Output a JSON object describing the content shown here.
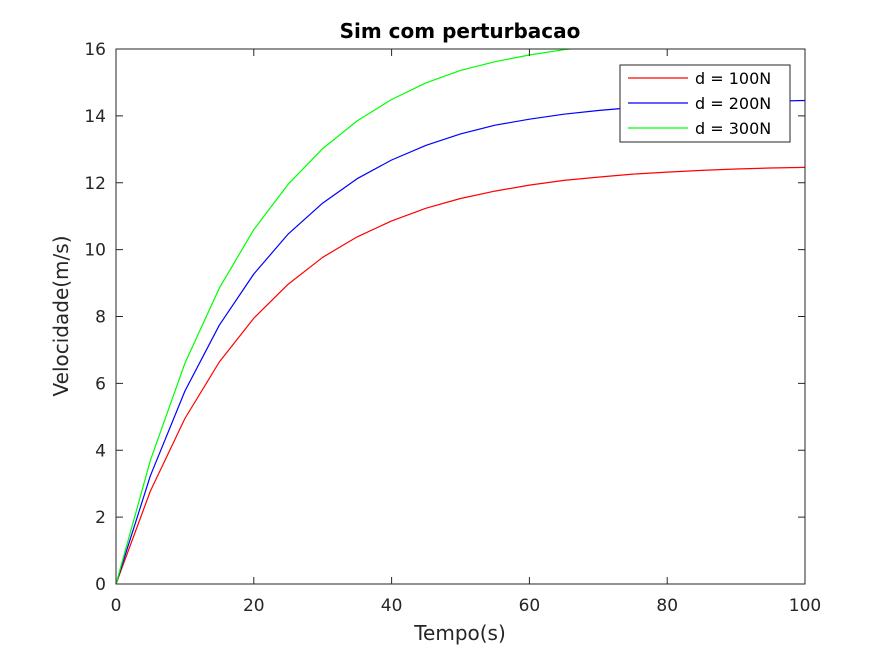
{
  "chart_data": {
    "type": "line",
    "title": "Sim com perturbacao",
    "xlabel": "Tempo(s)",
    "ylabel": "Velocidade(m/s)",
    "xlim": [
      0,
      100
    ],
    "ylim": [
      0,
      16
    ],
    "xticks": [
      0,
      20,
      40,
      60,
      80,
      100
    ],
    "yticks": [
      0,
      2,
      4,
      6,
      8,
      10,
      12,
      14,
      16
    ],
    "xtick_labels": [
      "0",
      "20",
      "40",
      "60",
      "80",
      "100"
    ],
    "ytick_labels": [
      "0",
      "2",
      "4",
      "6",
      "8",
      "10",
      "12",
      "14",
      "16"
    ],
    "grid": false,
    "legend_position": "top-right",
    "x": [
      0,
      5,
      10,
      15,
      20,
      25,
      30,
      35,
      40,
      45,
      50,
      55,
      60,
      65,
      70,
      75,
      80,
      85,
      90,
      95,
      100
    ],
    "series": [
      {
        "name": "d = 100N",
        "color": "#ff0000",
        "values": [
          0,
          2.78,
          4.95,
          6.64,
          7.95,
          8.97,
          9.77,
          10.38,
          10.86,
          11.24,
          11.53,
          11.75,
          11.93,
          12.07,
          12.17,
          12.26,
          12.32,
          12.37,
          12.41,
          12.44,
          12.46
        ]
      },
      {
        "name": "d = 200N",
        "color": "#0000ff",
        "values": [
          0,
          3.24,
          5.77,
          7.74,
          9.27,
          10.47,
          11.39,
          12.12,
          12.68,
          13.12,
          13.46,
          13.72,
          13.9,
          14.05,
          14.16,
          14.25,
          14.32,
          14.37,
          14.41,
          14.44,
          14.46
        ]
      },
      {
        "name": "d = 300N",
        "color": "#00ff00",
        "values": [
          0,
          3.7,
          6.6,
          8.85,
          10.6,
          11.96,
          13.02,
          13.85,
          14.49,
          14.99,
          15.36,
          15.62,
          15.82,
          15.98,
          16.1,
          16.2,
          16.28,
          16.34,
          16.38,
          16.42,
          16.45
        ]
      }
    ]
  }
}
